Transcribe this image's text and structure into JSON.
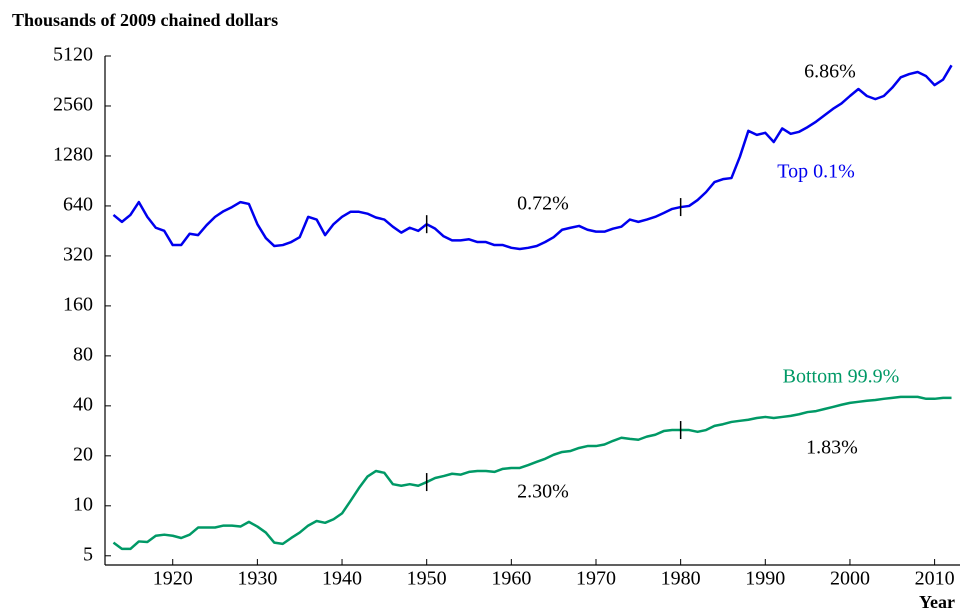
{
  "chart_data": {
    "type": "line",
    "title": "Thousands of 2009 chained dollars",
    "x_label": "Year",
    "log_scale": true,
    "xlim": [
      1912,
      2013
    ],
    "xticks": [
      1920,
      1930,
      1940,
      1950,
      1960,
      1970,
      1980,
      1990,
      2000,
      2010
    ],
    "ylim": [
      4.4,
      5120
    ],
    "yticks": [
      5,
      10,
      20,
      40,
      80,
      160,
      320,
      640,
      1280,
      2560,
      5120
    ],
    "markers": [
      1950,
      1980
    ],
    "annotations": [
      "6.86%",
      "0.72%",
      "2.30%",
      "1.83%"
    ],
    "x": [
      1913,
      1914,
      1915,
      1916,
      1917,
      1918,
      1919,
      1920,
      1921,
      1922,
      1923,
      1924,
      1925,
      1926,
      1927,
      1928,
      1929,
      1930,
      1931,
      1932,
      1933,
      1934,
      1935,
      1936,
      1937,
      1938,
      1939,
      1940,
      1941,
      1942,
      1943,
      1944,
      1945,
      1946,
      1947,
      1948,
      1949,
      1950,
      1951,
      1952,
      1953,
      1954,
      1955,
      1956,
      1957,
      1958,
      1959,
      1960,
      1961,
      1962,
      1963,
      1964,
      1965,
      1966,
      1967,
      1968,
      1969,
      1970,
      1971,
      1972,
      1973,
      1974,
      1975,
      1976,
      1977,
      1978,
      1979,
      1980,
      1981,
      1982,
      1983,
      1984,
      1985,
      1986,
      1987,
      1988,
      1989,
      1990,
      1991,
      1992,
      1993,
      1994,
      1995,
      1996,
      1997,
      1998,
      1999,
      2000,
      2001,
      2002,
      2003,
      2004,
      2005,
      2006,
      2007,
      2008,
      2009,
      2010,
      2011,
      2012
    ],
    "series": [
      {
        "name": "Top 0.1%",
        "color": "#0000ee",
        "values": [
          565,
          513,
          565,
          675,
          550,
          473,
          453,
          372,
          372,
          435,
          427,
          490,
          550,
          595,
          630,
          675,
          658,
          497,
          410,
          367,
          372,
          388,
          415,
          550,
          530,
          427,
          497,
          550,
          590,
          590,
          575,
          545,
          530,
          480,
          442,
          473,
          453,
          497,
          467,
          420,
          397,
          397,
          403,
          388,
          388,
          372,
          372,
          358,
          352,
          358,
          367,
          388,
          415,
          460,
          473,
          485,
          460,
          448,
          448,
          467,
          480,
          530,
          513,
          530,
          550,
          580,
          614,
          630,
          640,
          694,
          775,
          891,
          928,
          942,
          1267,
          1814,
          1714,
          1765,
          1553,
          1875,
          1740,
          1790,
          1910,
          2060,
          2250,
          2460,
          2650,
          2940,
          3240,
          2940,
          2815,
          2940,
          3300,
          3810,
          3985,
          4100,
          3870,
          3420,
          3690,
          4500
        ]
      },
      {
        "name": "Bottom 99.9%",
        "color": "#009966",
        "values": [
          6.0,
          5.5,
          5.5,
          6.1,
          6.05,
          6.6,
          6.7,
          6.6,
          6.4,
          6.7,
          7.4,
          7.4,
          7.4,
          7.6,
          7.6,
          7.5,
          8.0,
          7.5,
          6.9,
          6.0,
          5.9,
          6.4,
          6.9,
          7.6,
          8.1,
          7.9,
          8.3,
          9.0,
          10.7,
          12.8,
          15.0,
          16.2,
          15.8,
          13.5,
          13.2,
          13.5,
          13.2,
          13.9,
          14.7,
          15.1,
          15.6,
          15.4,
          16.0,
          16.2,
          16.2,
          16.0,
          16.7,
          16.9,
          16.9,
          17.6,
          18.4,
          19.2,
          20.3,
          21.1,
          21.4,
          22.3,
          22.9,
          22.9,
          23.4,
          24.6,
          25.7,
          25.3,
          25.0,
          26.1,
          26.8,
          28.2,
          28.6,
          28.6,
          28.6,
          27.9,
          28.6,
          30.3,
          31.0,
          32.0,
          32.5,
          33.0,
          33.8,
          34.3,
          33.8,
          34.3,
          34.8,
          35.6,
          36.7,
          37.2,
          38.3,
          39.4,
          40.6,
          41.7,
          42.3,
          42.9,
          43.4,
          44.1,
          44.7,
          45.3,
          45.3,
          45.3,
          44.1,
          44.1,
          44.7,
          44.7
        ]
      }
    ]
  }
}
